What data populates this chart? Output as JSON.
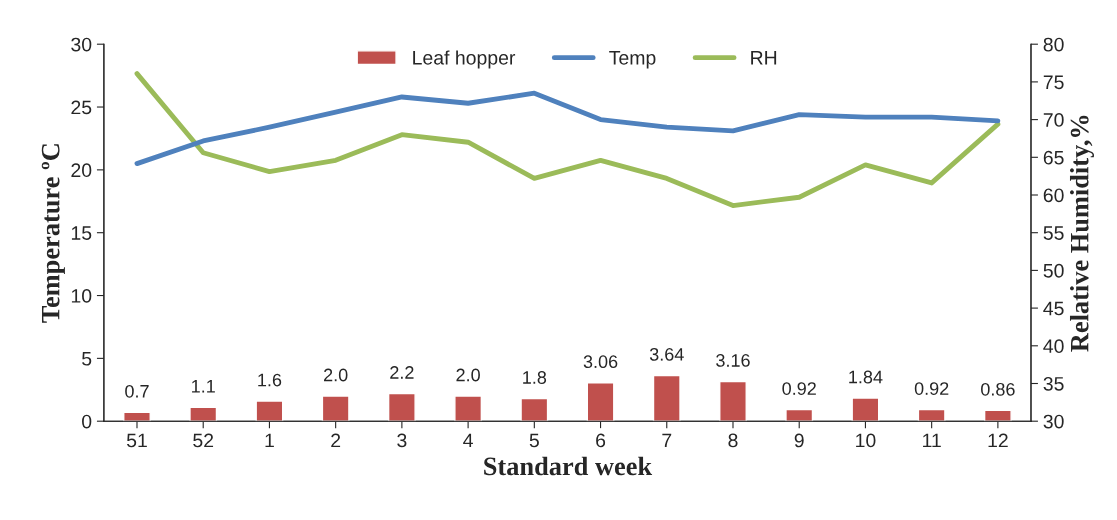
{
  "chart_data": {
    "type": "bar",
    "xlabel": "Standard week",
    "ylabel": "Temperature ºC",
    "y2label": "Relative Humidity,%",
    "categories": [
      "51",
      "52",
      "1",
      "2",
      "3",
      "4",
      "5",
      "6",
      "7",
      "8",
      "9",
      "10",
      "11",
      "12"
    ],
    "series": [
      {
        "name": "Leaf hopper",
        "color": "#c0504d",
        "values": [
          0.7,
          1.1,
          1.6,
          2.0,
          2.2,
          2.0,
          1.8,
          3.06,
          3.64,
          3.16,
          0.92,
          1.84,
          0.92,
          0.86
        ],
        "value_labels": [
          "0.7",
          "1.1",
          "1.6",
          "2.0",
          "2.2",
          "2.0",
          "1.8",
          "3.06",
          "3.64",
          "3.16",
          "0.92",
          "1.84",
          "0.92",
          "0.86"
        ]
      },
      {
        "name": "Temp",
        "type": "line",
        "color": "#4f81bd",
        "values": [
          20.5,
          22.3,
          23.4,
          24.6,
          25.8,
          25.3,
          26.1,
          24.0,
          23.4,
          23.1,
          24.4,
          24.2,
          24.2,
          23.9
        ]
      },
      {
        "name": "RH",
        "type": "line",
        "axis": "y2",
        "color": "#9bbb59",
        "values": [
          76.1,
          65.6,
          63.1,
          64.6,
          68.0,
          67.0,
          62.2,
          64.6,
          62.2,
          58.6,
          59.7,
          64.0,
          61.6,
          69.4
        ]
      }
    ],
    "ylim": [
      0,
      30
    ],
    "yticks": [
      0,
      5,
      10,
      15,
      20,
      25,
      30
    ],
    "y2lim": [
      30,
      80
    ],
    "y2ticks": [
      30,
      35,
      40,
      45,
      50,
      55,
      60,
      65,
      70,
      75,
      80
    ],
    "legend": "top",
    "grid": false
  }
}
